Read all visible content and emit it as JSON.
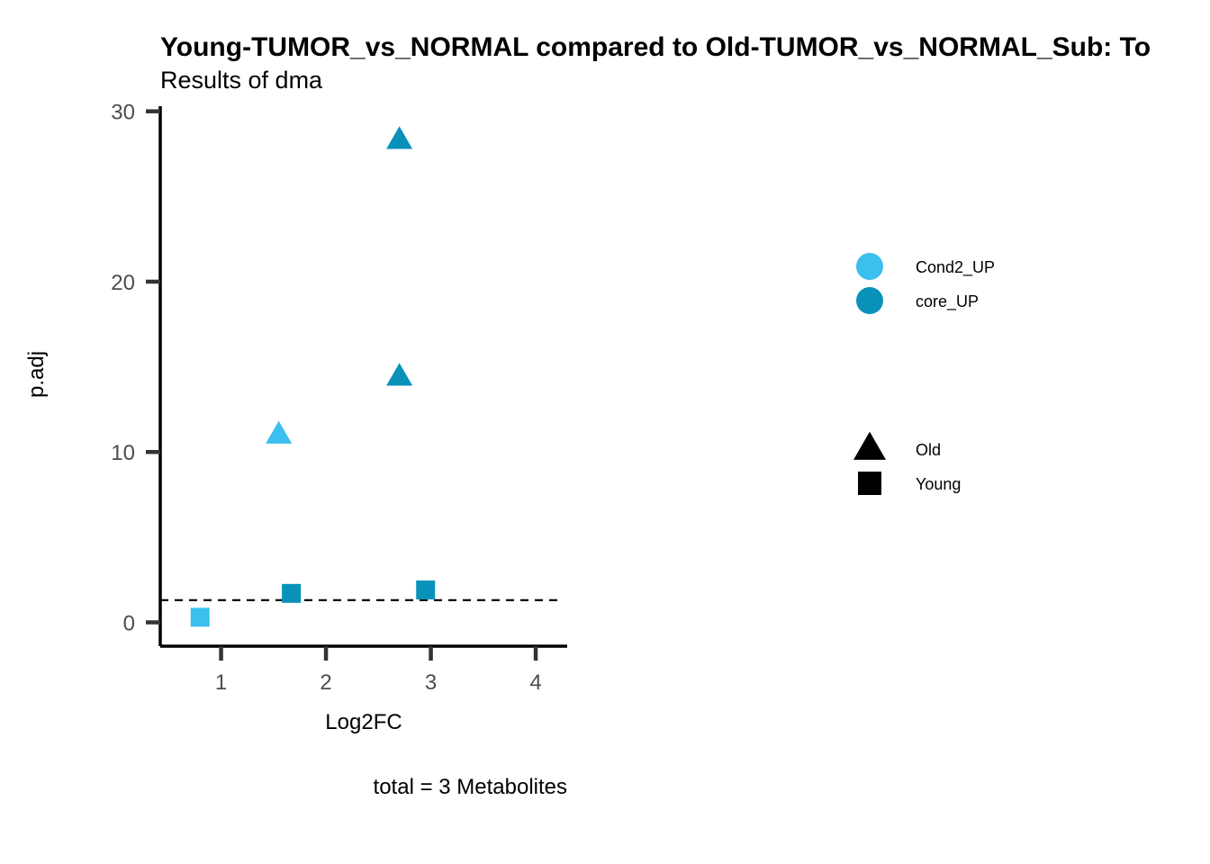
{
  "chart_data": {
    "type": "scatter",
    "title": "Young-TUMOR_vs_NORMAL compared to Old-TUMOR_vs_NORMAL_Sub: To",
    "subtitle": "Results of dma",
    "xlabel": "Log2FC",
    "ylabel": "p.adj",
    "caption": "total = 3 Metabolites",
    "xlim": [
      0.42,
      4.3
    ],
    "ylim": [
      -1.4,
      30.3
    ],
    "x_ticks": [
      1,
      2,
      3,
      4
    ],
    "y_ticks": [
      0,
      10,
      20,
      30
    ],
    "grid": false,
    "threshold_line": {
      "y": 1.3,
      "style": "dashed"
    },
    "legend_position": "right",
    "color_legend": [
      {
        "label": "Cond2_UP",
        "color": "#3bbfee"
      },
      {
        "label": "core_UP",
        "color": "#0892b9"
      }
    ],
    "shape_legend": [
      {
        "label": "Old",
        "shape": "triangle"
      },
      {
        "label": "Young",
        "shape": "square"
      }
    ],
    "points": [
      {
        "x": 0.8,
        "y": 0.3,
        "group": "Cond2_UP",
        "shape": "square"
      },
      {
        "x": 1.55,
        "y": 11.0,
        "group": "Cond2_UP",
        "shape": "triangle"
      },
      {
        "x": 1.67,
        "y": 1.7,
        "group": "core_UP",
        "shape": "square"
      },
      {
        "x": 2.7,
        "y": 14.4,
        "group": "core_UP",
        "shape": "triangle"
      },
      {
        "x": 2.7,
        "y": 28.3,
        "group": "core_UP",
        "shape": "triangle"
      },
      {
        "x": 2.95,
        "y": 1.9,
        "group": "core_UP",
        "shape": "square"
      }
    ]
  }
}
